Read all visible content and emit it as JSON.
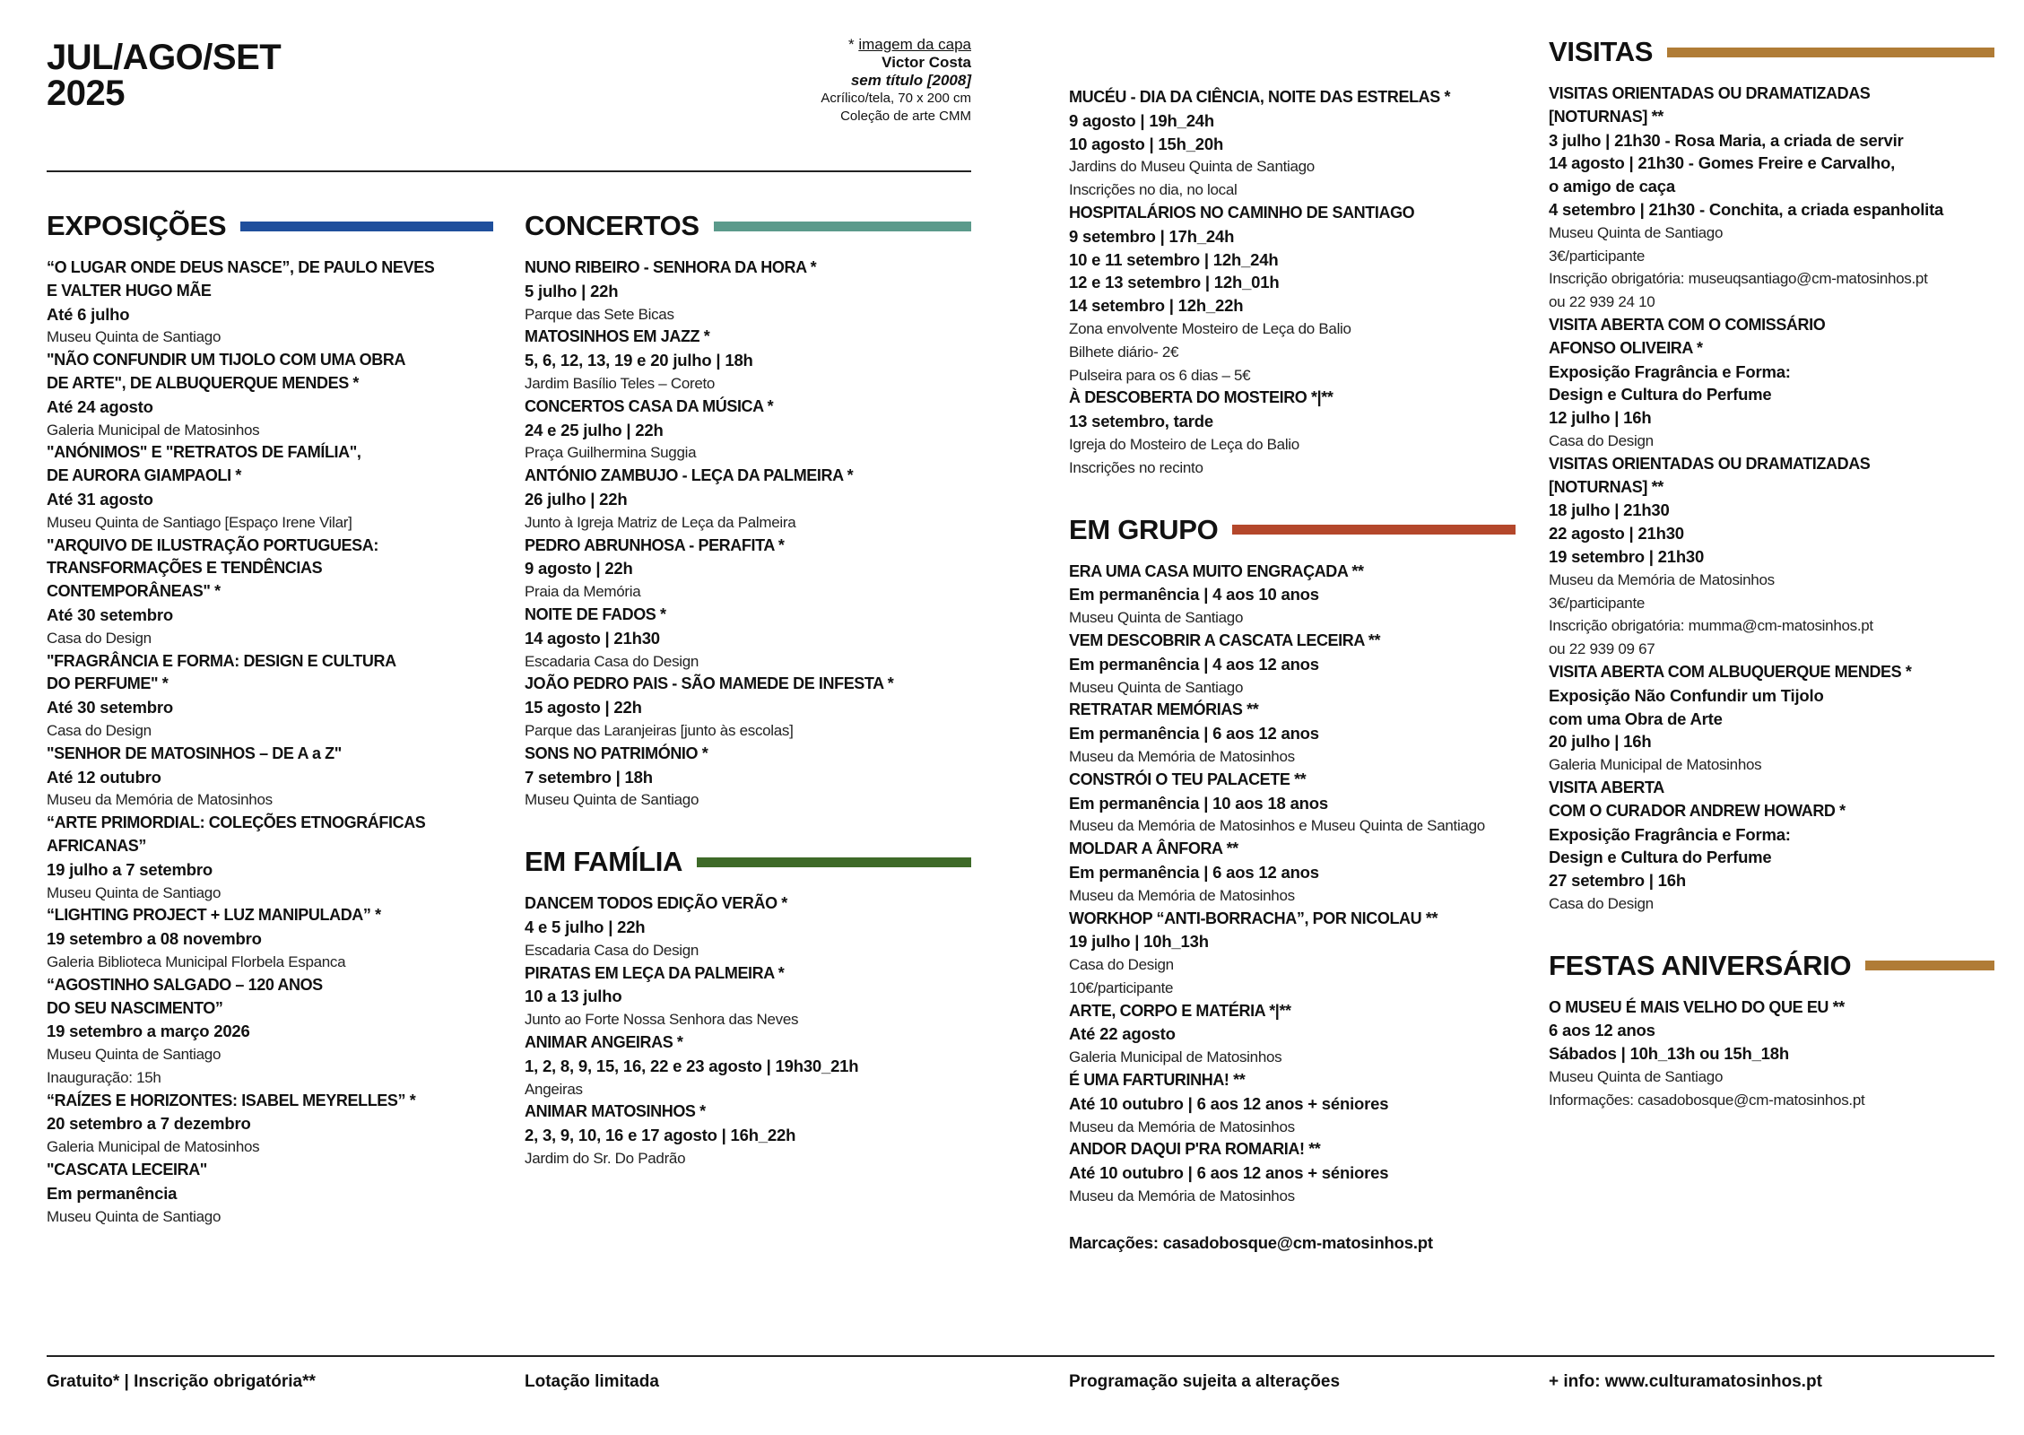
{
  "header": {
    "title_line1": "JUL/AGO/SET",
    "title_line2": "2025",
    "credit": {
      "label_prefix": "* ",
      "label": "imagem da capa",
      "artist": "Victor Costa",
      "work": "sem título [2008]",
      "medium": "Acrílico/tela, 70 x 200 cm",
      "collection": "Coleção de arte CMM"
    }
  },
  "colors": {
    "exposicoes": "#1f4f9c",
    "concertos": "#5b9a8b",
    "familia": "#3e6a28",
    "grupo": "#b4472b",
    "visitas": "#b07c36",
    "festas": "#b07c36"
  },
  "columns": [
    {
      "sections": [
        {
          "key": "exposicoes",
          "title": "EXPOSIÇÕES",
          "items": [
            {
              "title": [
                "“O LUGAR ONDE DEUS NASCE”, DE PAULO NEVES",
                "E VALTER HUGO MÃE"
              ],
              "dates": [
                "Até 6 julho"
              ],
              "info": [
                "Museu Quinta de Santiago"
              ]
            },
            {
              "title": [
                "\"NÃO CONFUNDIR UM TIJOLO COM UMA OBRA",
                "DE ARTE\", DE ALBUQUERQUE MENDES *"
              ],
              "dates": [
                "Até 24 agosto"
              ],
              "info": [
                "Galeria Municipal de Matosinhos"
              ]
            },
            {
              "title": [
                "\"ANÓNIMOS\" E \"RETRATOS DE FAMÍLIA\",",
                "DE AURORA GIAMPAOLI *"
              ],
              "dates": [
                "Até 31 agosto"
              ],
              "info": [
                "Museu Quinta de Santiago [Espaço Irene Vilar]"
              ]
            },
            {
              "title": [
                "\"ARQUIVO DE ILUSTRAÇÃO PORTUGUESA:",
                "TRANSFORMAÇÕES E TENDÊNCIAS",
                "CONTEMPORÂNEAS\" *"
              ],
              "dates": [
                "Até 30 setembro"
              ],
              "info": [
                "Casa do Design"
              ]
            },
            {
              "title": [
                "\"FRAGRÂNCIA E FORMA: DESIGN E CULTURA",
                "DO PERFUME\" *"
              ],
              "dates": [
                "Até 30 setembro"
              ],
              "info": [
                "Casa do Design"
              ]
            },
            {
              "title": [
                "\"SENHOR DE MATOSINHOS – DE A a Z\""
              ],
              "dates": [
                "Até 12 outubro"
              ],
              "info": [
                "Museu da Memória de Matosinhos"
              ]
            },
            {
              "title": [
                "“ARTE PRIMORDIAL: COLEÇÕES ETNOGRÁFICAS",
                "AFRICANAS”"
              ],
              "dates": [
                "19 julho a 7 setembro"
              ],
              "info": [
                "Museu Quinta de Santiago"
              ]
            },
            {
              "title": [
                "“LIGHTING PROJECT + LUZ MANIPULADA” *"
              ],
              "dates": [
                "19 setembro a 08 novembro"
              ],
              "info": [
                "Galeria Biblioteca Municipal Florbela Espanca"
              ]
            },
            {
              "title": [
                "“AGOSTINHO SALGADO – 120 ANOS",
                "DO SEU NASCIMENTO”"
              ],
              "dates": [
                "19 setembro a março 2026"
              ],
              "info": [
                "Museu Quinta de Santiago",
                "Inauguração: 15h"
              ]
            },
            {
              "title": [
                "“RAÍZES E HORIZONTES: ISABEL MEYRELLES” *"
              ],
              "dates": [
                "20 setembro a 7 dezembro"
              ],
              "info": [
                "Galeria Municipal de Matosinhos"
              ]
            },
            {
              "title": [
                "\"CASCATA LECEIRA\""
              ],
              "dates": [
                "Em permanência"
              ],
              "info": [
                "Museu Quinta de Santiago"
              ]
            }
          ]
        }
      ]
    },
    {
      "sections": [
        {
          "key": "concertos",
          "title": "CONCERTOS",
          "items": [
            {
              "title": [
                "NUNO RIBEIRO - SENHORA DA HORA *"
              ],
              "dates": [
                "5 julho | 22h"
              ],
              "info": [
                "Parque das Sete Bicas"
              ]
            },
            {
              "title": [
                "MATOSINHOS EM JAZZ *"
              ],
              "dates": [
                "5, 6, 12, 13, 19 e 20 julho | 18h"
              ],
              "info": [
                "Jardim Basílio Teles – Coreto"
              ]
            },
            {
              "title": [
                "CONCERTOS CASA DA MÚSICA *"
              ],
              "dates": [
                "24 e 25 julho | 22h"
              ],
              "info": [
                "Praça Guilhermina Suggia"
              ]
            },
            {
              "title": [
                "ANTÓNIO ZAMBUJO - LEÇA DA PALMEIRA *"
              ],
              "dates": [
                "26 julho | 22h"
              ],
              "info": [
                "Junto à Igreja Matriz de Leça da Palmeira"
              ]
            },
            {
              "title": [
                "PEDRO ABRUNHOSA - PERAFITA *"
              ],
              "dates": [
                "9 agosto | 22h"
              ],
              "info": [
                "Praia da Memória"
              ]
            },
            {
              "title": [
                "NOITE DE FADOS *"
              ],
              "dates": [
                "14 agosto | 21h30"
              ],
              "info": [
                "Escadaria Casa do Design"
              ]
            },
            {
              "title": [
                "JOÃO PEDRO PAIS - SÃO MAMEDE DE INFESTA *"
              ],
              "dates": [
                "15 agosto | 22h"
              ],
              "info": [
                "Parque das Laranjeiras [junto às escolas]"
              ]
            },
            {
              "title": [
                "SONS NO PATRIMÓNIO  *"
              ],
              "dates": [
                "7 setembro | 18h"
              ],
              "info": [
                "Museu Quinta de Santiago"
              ]
            }
          ]
        },
        {
          "key": "familia",
          "title": "EM FAMÍLIA",
          "items": [
            {
              "title": [
                "DANCEM TODOS EDIÇÃO VERÃO *"
              ],
              "dates": [
                "4 e 5 julho | 22h"
              ],
              "info": [
                "Escadaria Casa do Design"
              ]
            },
            {
              "title": [
                "PIRATAS EM LEÇA DA PALMEIRA *"
              ],
              "dates": [
                "10 a 13 julho"
              ],
              "info": [
                "Junto ao Forte Nossa Senhora das Neves"
              ]
            },
            {
              "title": [
                "ANIMAR ANGEIRAS *"
              ],
              "dates": [
                "1, 2, 8, 9, 15, 16, 22 e 23 agosto | 19h30_21h"
              ],
              "info": [
                "Angeiras"
              ]
            },
            {
              "title": [
                "ANIMAR MATOSINHOS *"
              ],
              "dates": [
                "2, 3, 9, 10, 16 e 17 agosto | 16h_22h"
              ],
              "info": [
                "Jardim do Sr. Do Padrão"
              ]
            }
          ]
        }
      ]
    },
    {
      "sections": [
        {
          "key": "",
          "title": "",
          "items": [
            {
              "title": [
                "MUCÉU - DIA DA CIÊNCIA, NOITE DAS ESTRELAS *"
              ],
              "dates": [
                "9 agosto | 19h_24h",
                "10 agosto | 15h_20h"
              ],
              "info": [
                "Jardins do Museu Quinta de Santiago",
                "Inscrições no dia, no local"
              ]
            },
            {
              "title": [
                "HOSPITALÁRIOS NO CAMINHO DE SANTIAGO"
              ],
              "dates": [
                "9 setembro | 17h_24h",
                "10 e 11 setembro | 12h_24h",
                "12 e 13 setembro | 12h_01h",
                "14 setembro | 12h_22h"
              ],
              "info": [
                "Zona envolvente Mosteiro de Leça do Balio",
                "Bilhete diário- 2€",
                "Pulseira para os 6 dias – 5€"
              ]
            },
            {
              "title": [
                "À DESCOBERTA DO MOSTEIRO *|**"
              ],
              "dates": [
                "13 setembro, tarde"
              ],
              "info": [
                "Igreja do Mosteiro de Leça do Balio",
                "Inscrições no recinto"
              ]
            }
          ]
        },
        {
          "key": "grupo",
          "title": "EM GRUPO",
          "items": [
            {
              "title": [
                "ERA UMA CASA MUITO ENGRAÇADA **"
              ],
              "dates": [
                "Em permanência | 4 aos 10 anos"
              ],
              "info": [
                "Museu Quinta de Santiago"
              ]
            },
            {
              "title": [
                "VEM DESCOBRIR A CASCATA LECEIRA **"
              ],
              "dates": [
                "Em permanência | 4 aos 12 anos"
              ],
              "info": [
                "Museu Quinta de Santiago"
              ]
            },
            {
              "title": [
                "RETRATAR MEMÓRIAS **"
              ],
              "dates": [
                "Em permanência | 6 aos 12 anos"
              ],
              "info": [
                "Museu da Memória de Matosinhos"
              ]
            },
            {
              "title": [
                "CONSTRÓI O TEU PALACETE **"
              ],
              "dates": [
                "Em permanência | 10 aos 18 anos"
              ],
              "info": [
                "Museu da Memória de Matosinhos e Museu Quinta de Santiago"
              ]
            },
            {
              "title": [
                "MOLDAR A ÂNFORA **"
              ],
              "dates": [
                "Em permanência | 6 aos 12 anos"
              ],
              "info": [
                "Museu da Memória de Matosinhos"
              ]
            },
            {
              "title": [
                "WORKHOP “ANTI-BORRACHA”, POR NICOLAU **"
              ],
              "dates": [
                "19 julho | 10h_13h"
              ],
              "info": [
                "Casa do Design",
                "10€/participante"
              ]
            },
            {
              "title": [
                "ARTE, CORPO E MATÉRIA *|**"
              ],
              "dates": [
                "Até 22 agosto"
              ],
              "info": [
                "Galeria Municipal de Matosinhos"
              ]
            },
            {
              "title": [
                "É UMA FARTURINHA! **"
              ],
              "dates": [
                "Até 10 outubro | 6 aos 12 anos + séniores"
              ],
              "info": [
                "Museu da Memória de Matosinhos"
              ]
            },
            {
              "title": [
                "ANDOR DAQUI P'RA ROMARIA! **"
              ],
              "dates": [
                "Até 10 outubro | 6 aos 12 anos + séniores"
              ],
              "info": [
                "Museu da Memória de Matosinhos"
              ]
            }
          ],
          "note": "Marcações: casadobosque@cm-matosinhos.pt"
        }
      ]
    },
    {
      "sections": [
        {
          "key": "visitas",
          "title": "VISITAS",
          "items": [
            {
              "title": [
                "VISITAS ORIENTADAS OU DRAMATIZADAS",
                "[NOTURNAS] **"
              ],
              "dates": [
                "3 julho | 21h30 - Rosa Maria, a criada de servir",
                "14 agosto | 21h30 - Gomes Freire e Carvalho,",
                "o amigo de caça",
                "4 setembro | 21h30 - Conchita, a criada espanholita"
              ],
              "info": [
                "Museu Quinta de Santiago",
                "3€/participante",
                "Inscrição obrigatória: museuqsantiago@cm-matosinhos.pt",
                "ou 22 939 24 10"
              ]
            },
            {
              "title": [
                "VISITA ABERTA COM O COMISSÁRIO",
                "AFONSO OLIVEIRA *"
              ],
              "dates": [
                "Exposição Fragrância e Forma:",
                "Design e Cultura do Perfume",
                "12 julho | 16h"
              ],
              "info": [
                "Casa do Design"
              ]
            },
            {
              "title": [
                "VISITAS ORIENTADAS OU DRAMATIZADAS",
                "[NOTURNAS] **"
              ],
              "dates": [
                "18 julho | 21h30",
                "22 agosto | 21h30",
                "19 setembro | 21h30"
              ],
              "info": [
                "Museu da Memória de Matosinhos",
                "3€/participante",
                "Inscrição obrigatória: mumma@cm-matosinhos.pt",
                "ou 22 939 09 67"
              ]
            },
            {
              "title": [
                "VISITA ABERTA COM ALBUQUERQUE MENDES *"
              ],
              "dates": [
                "Exposição Não Confundir um Tijolo",
                "com uma Obra de Arte",
                "20 julho | 16h"
              ],
              "info": [
                "Galeria Municipal de Matosinhos"
              ]
            },
            {
              "title": [
                "VISITA ABERTA",
                "COM O CURADOR ANDREW HOWARD *"
              ],
              "dates": [
                "Exposição Fragrância e Forma:",
                "Design e Cultura do Perfume",
                "27 setembro | 16h"
              ],
              "info": [
                "Casa do Design"
              ]
            }
          ]
        },
        {
          "key": "festas",
          "title": "FESTAS ANIVERSÁRIO",
          "items": [
            {
              "title": [
                "O MUSEU É MAIS VELHO DO QUE EU **"
              ],
              "dates": [
                "6 aos 12 anos",
                "Sábados | 10h_13h ou 15h_18h"
              ],
              "info": [
                "Museu Quinta de Santiago",
                "Informações: casadobosque@cm-matosinhos.pt"
              ]
            }
          ]
        }
      ]
    }
  ],
  "footer": {
    "legend": "Gratuito* | Inscrição obrigatória**",
    "capacity": "Lotação limitada",
    "changes": "Programação sujeita a alterações",
    "more_info": "+ info: www.culturamatosinhos.pt"
  }
}
